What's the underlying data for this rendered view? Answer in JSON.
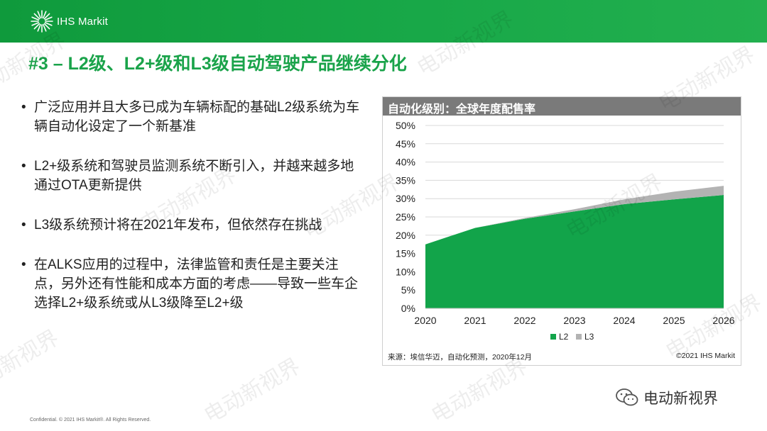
{
  "header": {
    "logo_text": "IHS Markit"
  },
  "title": "#3 – L2级、L2+级和L3级自动驾驶产品继续分化",
  "bullets": [
    "广泛应用并且大多已成为车辆标配的基础L2级系统为车辆自动化设定了一个新基准",
    "L2+级系统和驾驶员监测系统不断引入，并越来越多地通过OTA更新提供",
    "L3级系统预计将在2021年发布，但依然存在挑战",
    "在ALKS应用的过程中，法律监管和责任是主要关注点，另外还有性能和成本方面的考虑——导致一些车企选择L2+级系统或从L3级降至L2+级"
  ],
  "chart_data": {
    "type": "area",
    "title": "自动化级别：全球年度配售率",
    "x": [
      "2020",
      "2021",
      "2022",
      "2023",
      "2024",
      "2025",
      "2026"
    ],
    "series": [
      {
        "name": "L2",
        "values": [
          17.5,
          22,
          24.5,
          26.5,
          28.5,
          29.8,
          31
        ],
        "color": "#12a44a"
      },
      {
        "name": "L3",
        "values": [
          0,
          0,
          0.2,
          0.6,
          1.3,
          2.1,
          2.5
        ],
        "color": "#b3b3b3"
      }
    ],
    "stacked": true,
    "ylim": [
      0,
      50
    ],
    "yticks": [
      "0%",
      "5%",
      "10%",
      "15%",
      "20%",
      "25%",
      "30%",
      "35%",
      "40%",
      "45%",
      "50%"
    ],
    "grid": true,
    "legend": "bottom-center",
    "source": "来源：埃信华迈，自动化预测，2020年12月",
    "copyright": "©2021 IHS Markit"
  },
  "footer": {
    "confidential": "Confidential. © 2021 IHS Markit®. All Rights Reserved."
  },
  "watermark": {
    "account": "电动新视界"
  }
}
